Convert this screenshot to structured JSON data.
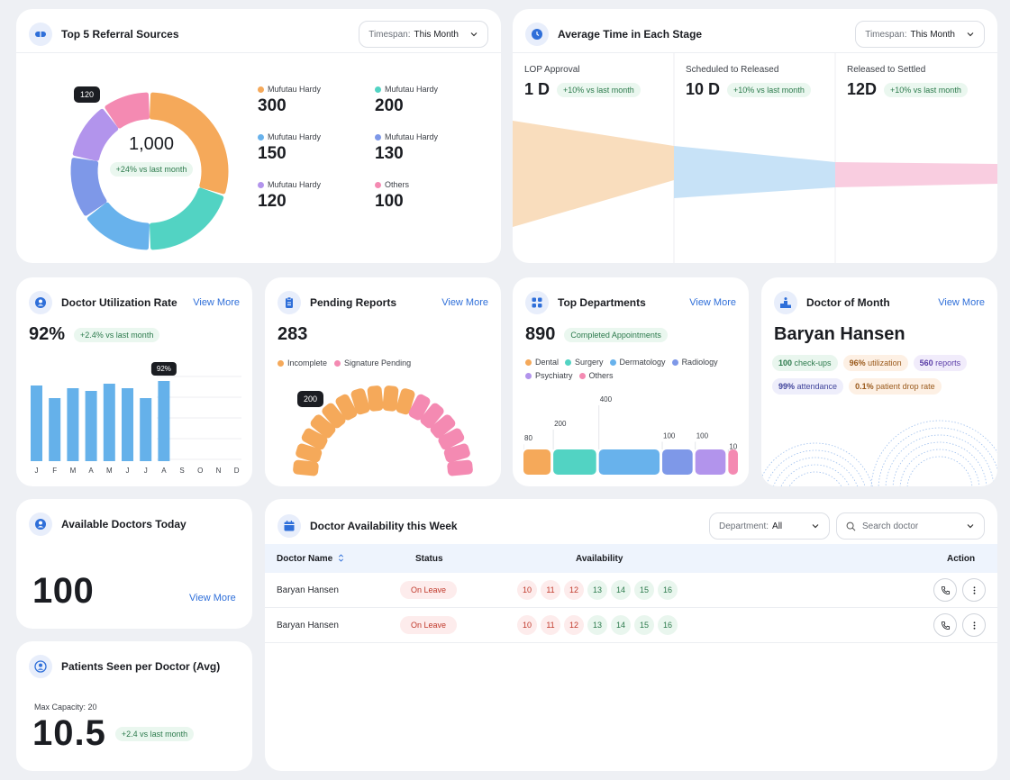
{
  "referral": {
    "title": "Top 5  Referral Sources",
    "timespan_label": "Timespan:",
    "timespan_value": "This Month",
    "total": "1,000",
    "total_badge": "+24% vs last month",
    "tooltip": "120",
    "slices": [
      {
        "name": "Mufutau Hardy",
        "value": 300,
        "color": "#f5a95a"
      },
      {
        "name": "Mufutau Hardy",
        "value": 200,
        "color": "#52d3c3"
      },
      {
        "name": "Mufutau Hardy",
        "value": 150,
        "color": "#68b2ec"
      },
      {
        "name": "Mufutau Hardy",
        "value": 130,
        "color": "#7e98e8"
      },
      {
        "name": "Mufutau Hardy",
        "value": 120,
        "color": "#b294ec"
      },
      {
        "name": "Others",
        "value": 100,
        "color": "#f48ab2"
      }
    ]
  },
  "stages": {
    "title": "Average Time in Each Stage",
    "timespan_label": "Timespan:",
    "timespan_value": "This Month",
    "items": [
      {
        "label": "LOP Approval",
        "value": "1 D",
        "badge": "+10% vs last month",
        "color": "#f9ddbd"
      },
      {
        "label": "Scheduled to Released",
        "value": "10 D",
        "badge": "+10% vs last month",
        "color": "#c7e2f7"
      },
      {
        "label": "Released to Settled",
        "value": "12D",
        "badge": "+10% vs last month",
        "color": "#f9cde0"
      }
    ]
  },
  "utilization": {
    "title": "Doctor Utilization Rate",
    "view_more": "View More",
    "value": "92%",
    "badge": "+2.4% vs last month",
    "tooltip": "92%",
    "months": [
      "J",
      "F",
      "M",
      "A",
      "M",
      "J",
      "J",
      "A",
      "S",
      "O",
      "N",
      "D"
    ],
    "bar_values": [
      84,
      70,
      81,
      78,
      86,
      81,
      70,
      89
    ],
    "bar_color": "#65b1ea"
  },
  "pending": {
    "title": "Pending Reports",
    "view_more": "View More",
    "value": "283",
    "legend": [
      {
        "label": "Incomplete",
        "color": "#f5a95a"
      },
      {
        "label": "Signature Pending",
        "color": "#f48ab2"
      }
    ],
    "tooltip": "200",
    "segments_orange": 10,
    "segments_pink": 6
  },
  "departments": {
    "title": "Top Departments",
    "view_more": "View More",
    "value": "890",
    "badge": "Completed Appointments",
    "legend": [
      {
        "label": "Dental",
        "color": "#f5a95a"
      },
      {
        "label": "Surgery",
        "color": "#52d3c3"
      },
      {
        "label": "Dermatology",
        "color": "#68b2ec"
      },
      {
        "label": "Radiology",
        "color": "#7e98e8"
      },
      {
        "label": "Psychiatry",
        "color": "#b294ec"
      },
      {
        "label": "Others",
        "color": "#f48ab2"
      }
    ],
    "bars": [
      {
        "label": "80",
        "value": 80,
        "color": "#f5a95a"
      },
      {
        "label": "200",
        "value": 200,
        "color": "#52d3c3"
      },
      {
        "label": "400",
        "value": 400,
        "color": "#68b2ec"
      },
      {
        "label": "100",
        "value": 100,
        "color": "#7e98e8"
      },
      {
        "label": "100",
        "value": 100,
        "color": "#b294ec"
      },
      {
        "label": "10",
        "value": 10,
        "color": "#f48ab2"
      }
    ]
  },
  "doctor_of_month": {
    "title": "Doctor of Month",
    "view_more": "View More",
    "name": "Baryan Hansen",
    "tags": [
      {
        "strong": "100",
        "text": "check-ups",
        "bg": "#e9f6ee",
        "fg": "#2c7a4c"
      },
      {
        "strong": "96%",
        "text": "utilization",
        "bg": "#fdf0e4",
        "fg": "#9a5a1c"
      },
      {
        "strong": "560",
        "text": "reports",
        "bg": "#f1ecfb",
        "fg": "#5b3ea8"
      },
      {
        "strong": "99%",
        "text": "attendance",
        "bg": "#eeeefb",
        "fg": "#40449b"
      },
      {
        "strong": "0.1%",
        "text": "patient drop rate",
        "bg": "#fdf0e4",
        "fg": "#9a5a1c"
      }
    ]
  },
  "available": {
    "title": "Available Doctors Today",
    "value": "100",
    "view_more": "View More"
  },
  "patients": {
    "title": "Patients Seen per Doctor (Avg)",
    "capacity": "Max Capacity: 20",
    "value": "10.5",
    "badge": "+2.4 vs last month"
  },
  "availability": {
    "title": "Doctor Availability this Week",
    "department_label": "Department:",
    "department_value": "All",
    "search_placeholder": "Search doctor",
    "columns": [
      "Doctor Name",
      "Status",
      "Availability",
      "Action"
    ],
    "rows": [
      {
        "name": "Baryan Hansen",
        "status": "On Leave"
      },
      {
        "name": "Baryan Hansen",
        "status": "On Leave"
      }
    ],
    "days": [
      {
        "day": "10",
        "free": false
      },
      {
        "day": "11",
        "free": false
      },
      {
        "day": "12",
        "free": false
      },
      {
        "day": "13",
        "free": true
      },
      {
        "day": "14",
        "free": true
      },
      {
        "day": "15",
        "free": true
      },
      {
        "day": "16",
        "free": true
      }
    ]
  }
}
